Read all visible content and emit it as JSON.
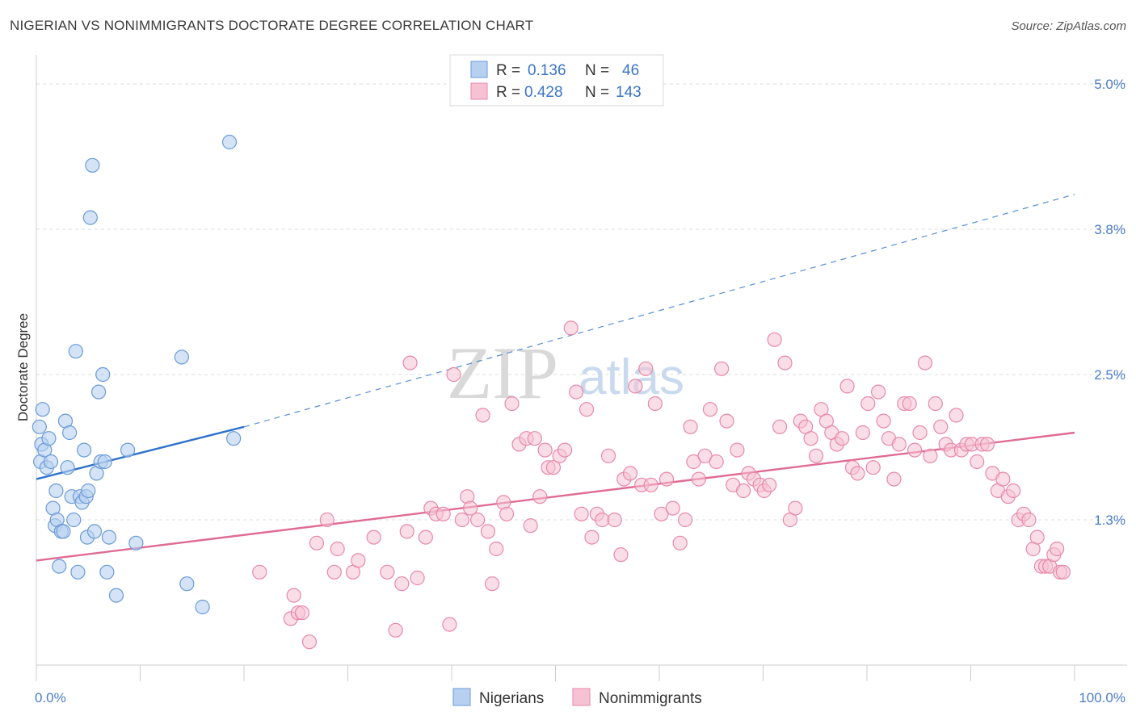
{
  "title": "NIGERIAN VS NONIMMIGRANTS DOCTORATE DEGREE CORRELATION CHART",
  "source": "Source: ZipAtlas.com",
  "watermark": {
    "zip": "ZIP",
    "atlas": "atlas"
  },
  "colors": {
    "blue_fill": "#b8d0f0",
    "blue_stroke": "#6a9bd8",
    "blue_line": "#2f72cc",
    "pink_fill": "#f6c2d3",
    "pink_stroke": "#e888a8",
    "pink_line": "#e06b95",
    "tick_text": "#4a7cc9",
    "grid": "#dddddd"
  },
  "legend": {
    "rows": [
      {
        "r_label": "R =",
        "r_value": "0.136",
        "n_label": "N =",
        "n_value": "46",
        "series": "blue"
      },
      {
        "r_label": "R =",
        "r_value": "0.428",
        "n_label": "N =",
        "n_value": "143",
        "series": "pink"
      }
    ]
  },
  "chart_data": {
    "type": "scatter",
    "title": "NIGERIAN VS NONIMMIGRANTS DOCTORATE DEGREE CORRELATION CHART",
    "xlabel": "",
    "ylabel": "Doctorate Degree",
    "xlim": [
      0,
      100
    ],
    "ylim": [
      0,
      5.25
    ],
    "x_tick_labels": [
      "0.0%",
      "100.0%"
    ],
    "y_ticks": [
      1.25,
      2.5,
      3.75,
      5.0
    ],
    "y_tick_labels": [
      "1.3%",
      "2.5%",
      "3.8%",
      "5.0%"
    ],
    "grid": true,
    "legend_position": "top-center",
    "series": [
      {
        "name": "Nigerians",
        "color": "blue",
        "trend": {
          "x0": 0,
          "y0": 1.6,
          "x1": 20,
          "y1": 2.05,
          "dashed_to_x": 100,
          "dashed_to_y": 4.05
        },
        "points": [
          [
            0.3,
            2.05
          ],
          [
            0.4,
            1.75
          ],
          [
            0.5,
            1.9
          ],
          [
            0.6,
            2.2
          ],
          [
            0.8,
            1.85
          ],
          [
            1.0,
            1.7
          ],
          [
            1.2,
            1.95
          ],
          [
            1.4,
            1.75
          ],
          [
            1.6,
            1.35
          ],
          [
            1.8,
            1.2
          ],
          [
            1.9,
            1.5
          ],
          [
            2.0,
            1.25
          ],
          [
            2.2,
            0.85
          ],
          [
            2.4,
            1.15
          ],
          [
            2.6,
            1.15
          ],
          [
            2.8,
            2.1
          ],
          [
            3.0,
            1.7
          ],
          [
            3.2,
            2.0
          ],
          [
            3.4,
            1.45
          ],
          [
            3.6,
            1.25
          ],
          [
            3.8,
            2.7
          ],
          [
            4.0,
            0.8
          ],
          [
            4.2,
            1.45
          ],
          [
            4.4,
            1.4
          ],
          [
            4.6,
            1.85
          ],
          [
            4.8,
            1.45
          ],
          [
            4.9,
            1.1
          ],
          [
            5.0,
            1.5
          ],
          [
            5.2,
            3.85
          ],
          [
            5.4,
            4.3
          ],
          [
            5.6,
            1.15
          ],
          [
            5.8,
            1.65
          ],
          [
            6.0,
            2.35
          ],
          [
            6.2,
            1.75
          ],
          [
            6.4,
            2.5
          ],
          [
            6.6,
            1.75
          ],
          [
            6.8,
            0.8
          ],
          [
            7.0,
            1.1
          ],
          [
            7.7,
            0.6
          ],
          [
            8.8,
            1.85
          ],
          [
            9.6,
            1.05
          ],
          [
            14.0,
            2.65
          ],
          [
            14.5,
            0.7
          ],
          [
            16.0,
            0.5
          ],
          [
            18.6,
            4.5
          ],
          [
            19.0,
            1.95
          ]
        ]
      },
      {
        "name": "Nonimmigrants",
        "color": "pink",
        "trend": {
          "x0": 0,
          "y0": 0.9,
          "x1": 100,
          "y1": 2.0
        },
        "points": [
          [
            21.5,
            0.8
          ],
          [
            24.5,
            0.4
          ],
          [
            24.8,
            0.6
          ],
          [
            25.2,
            0.45
          ],
          [
            25.6,
            0.45
          ],
          [
            26.3,
            0.2
          ],
          [
            27.0,
            1.05
          ],
          [
            28.0,
            1.25
          ],
          [
            28.7,
            0.8
          ],
          [
            29.0,
            1.0
          ],
          [
            30.5,
            0.8
          ],
          [
            31.0,
            0.9
          ],
          [
            32.5,
            1.1
          ],
          [
            33.8,
            0.8
          ],
          [
            34.6,
            0.3
          ],
          [
            35.2,
            0.7
          ],
          [
            35.7,
            1.15
          ],
          [
            36.0,
            2.6
          ],
          [
            36.7,
            0.75
          ],
          [
            37.5,
            1.1
          ],
          [
            38.0,
            1.35
          ],
          [
            38.5,
            1.3
          ],
          [
            39.2,
            1.3
          ],
          [
            39.8,
            0.35
          ],
          [
            40.2,
            2.5
          ],
          [
            41.0,
            1.25
          ],
          [
            41.5,
            1.45
          ],
          [
            41.8,
            1.35
          ],
          [
            42.5,
            1.25
          ],
          [
            43.0,
            2.15
          ],
          [
            43.5,
            1.15
          ],
          [
            43.9,
            0.7
          ],
          [
            44.3,
            1.0
          ],
          [
            45.0,
            1.4
          ],
          [
            45.3,
            1.3
          ],
          [
            45.8,
            2.25
          ],
          [
            46.5,
            1.9
          ],
          [
            47.2,
            1.95
          ],
          [
            47.6,
            1.2
          ],
          [
            48.0,
            1.95
          ],
          [
            48.5,
            1.45
          ],
          [
            49.0,
            1.85
          ],
          [
            49.3,
            1.7
          ],
          [
            49.8,
            1.7
          ],
          [
            50.4,
            1.8
          ],
          [
            50.9,
            1.85
          ],
          [
            51.5,
            2.9
          ],
          [
            52.0,
            2.35
          ],
          [
            52.5,
            1.3
          ],
          [
            53.0,
            2.2
          ],
          [
            53.5,
            1.1
          ],
          [
            54.0,
            1.3
          ],
          [
            54.5,
            1.25
          ],
          [
            55.1,
            1.8
          ],
          [
            55.7,
            1.25
          ],
          [
            56.3,
            0.95
          ],
          [
            56.6,
            1.6
          ],
          [
            57.2,
            1.65
          ],
          [
            57.7,
            2.4
          ],
          [
            58.3,
            1.55
          ],
          [
            58.7,
            2.55
          ],
          [
            59.2,
            1.55
          ],
          [
            59.6,
            2.25
          ],
          [
            60.2,
            1.3
          ],
          [
            60.7,
            1.6
          ],
          [
            61.3,
            1.35
          ],
          [
            62.0,
            1.05
          ],
          [
            62.5,
            1.25
          ],
          [
            63.0,
            2.05
          ],
          [
            63.3,
            1.75
          ],
          [
            63.8,
            1.6
          ],
          [
            64.4,
            1.8
          ],
          [
            64.9,
            2.2
          ],
          [
            65.5,
            1.75
          ],
          [
            66.0,
            2.55
          ],
          [
            66.5,
            2.1
          ],
          [
            67.1,
            1.55
          ],
          [
            67.5,
            1.85
          ],
          [
            68.1,
            1.5
          ],
          [
            68.6,
            1.65
          ],
          [
            69.1,
            1.6
          ],
          [
            69.7,
            1.55
          ],
          [
            70.1,
            1.5
          ],
          [
            70.6,
            1.55
          ],
          [
            71.1,
            2.8
          ],
          [
            71.6,
            2.05
          ],
          [
            72.1,
            2.6
          ],
          [
            72.6,
            1.25
          ],
          [
            73.1,
            1.35
          ],
          [
            73.6,
            2.1
          ],
          [
            74.1,
            2.05
          ],
          [
            74.6,
            1.95
          ],
          [
            75.1,
            1.8
          ],
          [
            75.6,
            2.2
          ],
          [
            76.1,
            2.1
          ],
          [
            76.6,
            2.0
          ],
          [
            77.1,
            1.9
          ],
          [
            77.6,
            1.95
          ],
          [
            78.1,
            2.4
          ],
          [
            78.6,
            1.7
          ],
          [
            79.1,
            1.65
          ],
          [
            79.6,
            2.0
          ],
          [
            80.1,
            2.25
          ],
          [
            80.6,
            1.7
          ],
          [
            81.1,
            2.35
          ],
          [
            81.6,
            2.1
          ],
          [
            82.1,
            1.95
          ],
          [
            82.6,
            1.6
          ],
          [
            83.1,
            1.9
          ],
          [
            83.6,
            2.25
          ],
          [
            84.1,
            2.25
          ],
          [
            84.6,
            1.85
          ],
          [
            85.1,
            2.0
          ],
          [
            85.6,
            2.6
          ],
          [
            86.1,
            1.8
          ],
          [
            86.6,
            2.25
          ],
          [
            87.1,
            2.05
          ],
          [
            87.6,
            1.9
          ],
          [
            88.1,
            1.85
          ],
          [
            88.6,
            2.15
          ],
          [
            89.1,
            1.85
          ],
          [
            89.6,
            1.9
          ],
          [
            90.1,
            1.9
          ],
          [
            90.6,
            1.75
          ],
          [
            91.1,
            1.9
          ],
          [
            91.6,
            1.9
          ],
          [
            92.1,
            1.65
          ],
          [
            92.6,
            1.5
          ],
          [
            93.1,
            1.6
          ],
          [
            93.6,
            1.45
          ],
          [
            94.1,
            1.5
          ],
          [
            94.6,
            1.25
          ],
          [
            95.1,
            1.3
          ],
          [
            95.6,
            1.25
          ],
          [
            96.0,
            1.0
          ],
          [
            96.4,
            1.1
          ],
          [
            96.8,
            0.85
          ],
          [
            97.2,
            0.85
          ],
          [
            97.6,
            0.85
          ],
          [
            98.0,
            0.95
          ],
          [
            98.3,
            1.0
          ],
          [
            98.6,
            0.8
          ],
          [
            98.9,
            0.8
          ]
        ]
      }
    ]
  },
  "bottom_legend": [
    {
      "label": "Nigerians",
      "series": "blue"
    },
    {
      "label": "Nonimmigrants",
      "series": "pink"
    }
  ]
}
